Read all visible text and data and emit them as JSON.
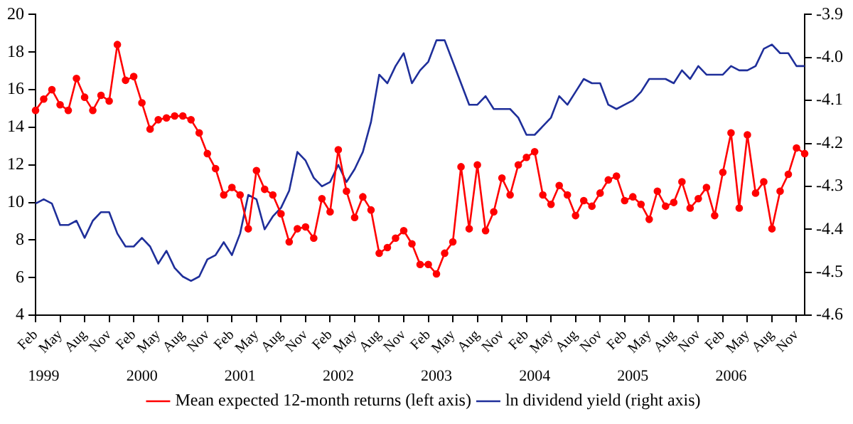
{
  "chart_data": {
    "type": "line",
    "categories": [
      "Feb",
      null,
      null,
      "May",
      null,
      null,
      "Aug",
      null,
      null,
      "Nov",
      null,
      null,
      "Feb",
      null,
      null,
      "May",
      null,
      null,
      "Aug",
      null,
      null,
      "Nov",
      null,
      null,
      "Feb",
      null,
      null,
      "May",
      null,
      null,
      "Aug",
      null,
      null,
      "Nov",
      null,
      null,
      "Feb",
      null,
      null,
      "May",
      null,
      null,
      "Aug",
      null,
      null,
      "Nov",
      null,
      null,
      "Feb",
      null,
      null,
      "May",
      null,
      null,
      "Aug",
      null,
      null,
      "Nov",
      null,
      null,
      "Feb",
      null,
      null,
      "May",
      null,
      null,
      "Aug",
      null,
      null,
      "Nov",
      null,
      null,
      "Feb",
      null,
      null,
      "May",
      null,
      null,
      "Aug",
      null,
      null,
      "Nov",
      null,
      null,
      "Feb",
      null,
      null,
      "May",
      null,
      null,
      "Aug",
      null,
      null,
      "Nov",
      null
    ],
    "series": [
      {
        "name": "Mean expected 12-month returns (left axis)",
        "color": "#ff0000",
        "marker": "circle",
        "values": [
          14.9,
          15.5,
          16.0,
          15.2,
          14.9,
          16.6,
          15.6,
          14.9,
          15.7,
          15.4,
          18.4,
          16.5,
          16.7,
          15.3,
          13.9,
          14.4,
          14.5,
          14.6,
          14.6,
          14.4,
          13.7,
          12.6,
          11.8,
          10.4,
          10.8,
          10.4,
          8.6,
          11.7,
          10.7,
          10.4,
          9.4,
          7.9,
          8.6,
          8.7,
          8.1,
          10.2,
          9.5,
          12.8,
          10.6,
          9.2,
          10.3,
          9.6,
          7.3,
          7.6,
          8.1,
          8.5,
          7.8,
          6.7,
          6.7,
          6.2,
          7.3,
          7.9,
          11.9,
          8.6,
          12.0,
          8.5,
          9.5,
          11.3,
          10.4,
          12.0,
          12.4,
          12.7,
          10.4,
          9.9,
          10.9,
          10.4,
          9.3,
          10.1,
          9.8,
          10.5,
          11.2,
          11.4,
          10.1,
          10.3,
          9.9,
          9.1,
          10.6,
          9.8,
          10.0,
          11.1,
          9.7,
          10.2,
          10.8,
          9.3,
          11.6,
          13.7,
          9.7,
          13.6,
          10.5,
          11.1,
          8.6,
          10.6,
          11.5,
          12.9,
          12.6
        ]
      },
      {
        "name": "ln dividend yield (right axis)",
        "color": "#1f2f9a",
        "axis": "y2",
        "marker": "none",
        "values": [
          -4.34,
          -4.33,
          -4.34,
          -4.39,
          -4.39,
          -4.38,
          -4.42,
          -4.38,
          -4.36,
          -4.36,
          -4.41,
          -4.44,
          -4.44,
          -4.42,
          -4.44,
          -4.48,
          -4.45,
          -4.49,
          -4.51,
          -4.52,
          -4.51,
          -4.47,
          -4.46,
          -4.43,
          -4.46,
          -4.41,
          -4.32,
          -4.33,
          -4.4,
          -4.37,
          -4.35,
          -4.31,
          -4.22,
          -4.24,
          -4.28,
          -4.3,
          -4.29,
          -4.25,
          -4.29,
          -4.26,
          -4.22,
          -4.15,
          -4.04,
          -4.06,
          -4.02,
          -3.99,
          -4.06,
          -4.03,
          -4.01,
          -3.96,
          -3.96,
          -4.01,
          -4.06,
          -4.11,
          -4.11,
          -4.09,
          -4.12,
          -4.12,
          -4.12,
          -4.14,
          -4.18,
          -4.18,
          -4.16,
          -4.14,
          -4.09,
          -4.11,
          -4.08,
          -4.05,
          -4.06,
          -4.06,
          -4.11,
          -4.12,
          -4.11,
          -4.1,
          -4.08,
          -4.05,
          -4.05,
          -4.05,
          -4.06,
          -4.03,
          -4.05,
          -4.02,
          -4.04,
          -4.04,
          -4.04,
          -4.02,
          -4.03,
          -4.03,
          -4.02,
          -3.98,
          -3.97,
          -3.99,
          -3.99,
          -4.02,
          -4.02
        ]
      }
    ],
    "ylim": [
      4,
      20
    ],
    "yticks": [
      4,
      6,
      8,
      10,
      12,
      14,
      16,
      18,
      20
    ],
    "y2lim": [
      -4.6,
      -3.9
    ],
    "y2ticks": [
      -4.6,
      -4.5,
      -4.4,
      -4.3,
      -4.2,
      -4.1,
      {
        "value": -4.0,
        "label": "-4.0"
      },
      -3.9
    ],
    "grid": false,
    "legend": "bottom",
    "line_style": "solid",
    "annotations": [
      "1999",
      "2000",
      "2001",
      "2002",
      "2003",
      "2004",
      "2005",
      "2006"
    ]
  }
}
